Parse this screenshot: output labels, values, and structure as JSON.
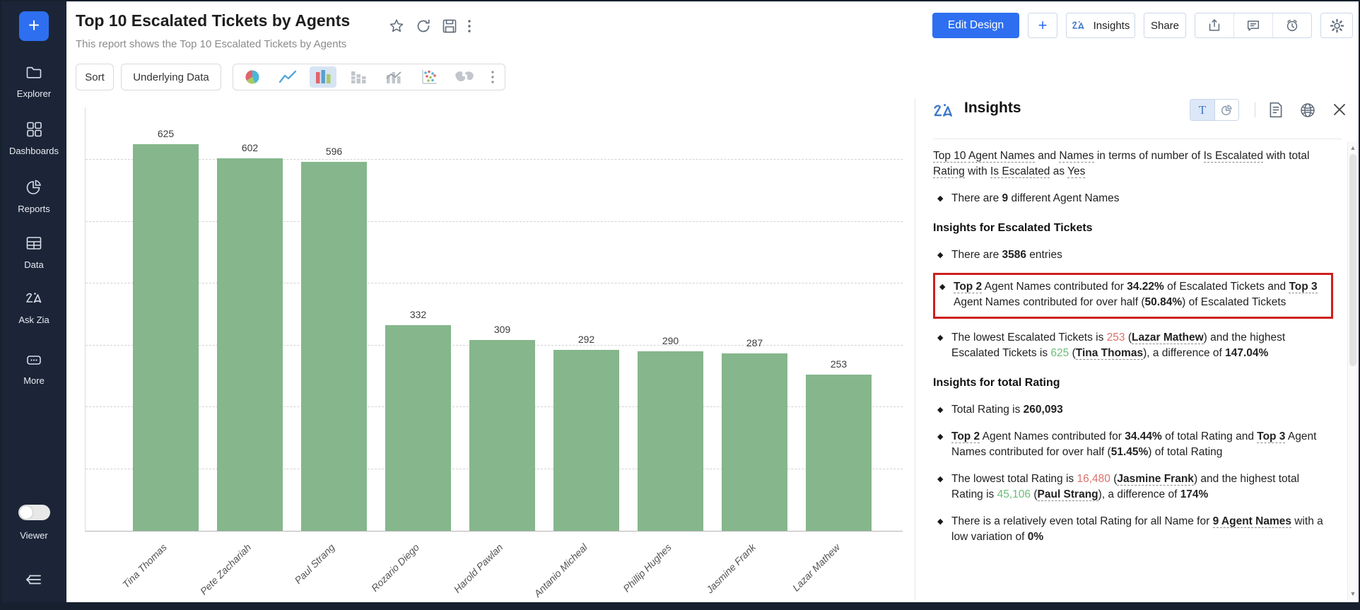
{
  "sidebar": {
    "plus": "+",
    "items": [
      "Explorer",
      "Dashboards",
      "Reports",
      "Data",
      "Ask Zia",
      "More"
    ],
    "viewer_label": "Viewer"
  },
  "header": {
    "title": "Top 10 Escalated Tickets by Agents",
    "subtitle": "This report shows the Top 10 Escalated Tickets by Agents",
    "edit_design": "Edit Design",
    "plus": "+",
    "insights_button": "Insights",
    "share": "Share"
  },
  "toolbar": {
    "sort": "Sort",
    "underlying_data": "Underlying Data"
  },
  "chart_data": {
    "type": "bar",
    "title": "Top 10 Escalated Tickets by Agents",
    "categories": [
      "Tina Thomas",
      "Pete Zachariah",
      "Paul Strang",
      "Rozario Diego",
      "Harold Pawlan",
      "Antanio Micheal",
      "Phillip Hughes",
      "Jasmine Frank",
      "Lazar Mathew"
    ],
    "values": [
      625,
      602,
      596,
      332,
      309,
      292,
      290,
      287,
      253
    ],
    "xlabel": "",
    "ylabel": "",
    "ylim": [
      0,
      685
    ],
    "grid": "horizontal dashed, step 100, no y tick labels",
    "bar_color": "#85b68c",
    "value_labels_shown": true,
    "legend": "none"
  },
  "insights": {
    "title": "Insights",
    "sections": [
      {
        "type": "intro",
        "segments": [
          {
            "t": "Top 10",
            "s": "u"
          },
          {
            "t": " ",
            "s": "n"
          },
          {
            "t": "Agent Names",
            "s": "u"
          },
          {
            "t": " and ",
            "s": "n"
          },
          {
            "t": "Names",
            "s": "u"
          },
          {
            "t": " in terms of number of ",
            "s": "n"
          },
          {
            "t": "Is Escalated",
            "s": "u"
          },
          {
            "t": " with total ",
            "s": "n"
          },
          {
            "t": "Rating",
            "s": "u"
          },
          {
            "t": " with ",
            "s": "n"
          },
          {
            "t": "Is Escalated",
            "s": "u"
          },
          {
            "t": " as ",
            "s": "n"
          },
          {
            "t": "Yes",
            "s": "u"
          }
        ]
      },
      {
        "type": "bullet",
        "segments": [
          {
            "t": "There are ",
            "s": "n"
          },
          {
            "t": "9",
            "s": "b"
          },
          {
            "t": " different Agent Names",
            "s": "n"
          }
        ]
      },
      {
        "type": "heading",
        "text": "Insights for Escalated Tickets"
      },
      {
        "type": "bullet",
        "segments": [
          {
            "t": "There are ",
            "s": "n"
          },
          {
            "t": "3586",
            "s": "b"
          },
          {
            "t": " entries",
            "s": "n"
          }
        ]
      },
      {
        "type": "bullet",
        "highlighted": true,
        "segments": [
          {
            "t": "Top 2",
            "s": "bu"
          },
          {
            "t": " Agent Names contributed for ",
            "s": "n"
          },
          {
            "t": "34.22%",
            "s": "b"
          },
          {
            "t": " of Escalated Tickets and ",
            "s": "n"
          },
          {
            "t": "Top 3",
            "s": "bu"
          },
          {
            "t": " Agent Names contributed for over half (",
            "s": "n"
          },
          {
            "t": "50.84%",
            "s": "b"
          },
          {
            "t": ") of Escalated Tickets",
            "s": "n"
          }
        ]
      },
      {
        "type": "bullet",
        "segments": [
          {
            "t": "The lowest Escalated Tickets is ",
            "s": "n"
          },
          {
            "t": "253",
            "s": "red"
          },
          {
            "t": " (",
            "s": "n"
          },
          {
            "t": "Lazar Mathew",
            "s": "bu"
          },
          {
            "t": ") and the highest Escalated Tickets is ",
            "s": "n"
          },
          {
            "t": "625",
            "s": "green"
          },
          {
            "t": " (",
            "s": "n"
          },
          {
            "t": "Tina Thomas",
            "s": "bu"
          },
          {
            "t": "), a difference of ",
            "s": "n"
          },
          {
            "t": "147.04%",
            "s": "b"
          }
        ]
      },
      {
        "type": "heading",
        "text": "Insights for total Rating"
      },
      {
        "type": "bullet",
        "segments": [
          {
            "t": "Total Rating is ",
            "s": "n"
          },
          {
            "t": "260,093",
            "s": "b"
          }
        ]
      },
      {
        "type": "bullet",
        "segments": [
          {
            "t": "Top 2",
            "s": "bu"
          },
          {
            "t": " Agent Names contributed for ",
            "s": "n"
          },
          {
            "t": "34.44%",
            "s": "b"
          },
          {
            "t": " of total Rating and ",
            "s": "n"
          },
          {
            "t": "Top 3",
            "s": "bu"
          },
          {
            "t": " Agent Names contributed for over half (",
            "s": "n"
          },
          {
            "t": "51.45%",
            "s": "b"
          },
          {
            "t": ") of total Rating",
            "s": "n"
          }
        ]
      },
      {
        "type": "bullet",
        "segments": [
          {
            "t": "The lowest total Rating is ",
            "s": "n"
          },
          {
            "t": "16,480",
            "s": "red"
          },
          {
            "t": " (",
            "s": "n"
          },
          {
            "t": "Jasmine Frank",
            "s": "bu"
          },
          {
            "t": ") and the highest total Rating is ",
            "s": "n"
          },
          {
            "t": "45,106",
            "s": "green"
          },
          {
            "t": " (",
            "s": "n"
          },
          {
            "t": "Paul Strang",
            "s": "bu"
          },
          {
            "t": "), a difference of ",
            "s": "n"
          },
          {
            "t": "174%",
            "s": "b"
          }
        ]
      },
      {
        "type": "bullet",
        "segments": [
          {
            "t": "There is a relatively even total Rating for all Name for ",
            "s": "n"
          },
          {
            "t": "9 Agent Names",
            "s": "bu"
          },
          {
            "t": " with a low variation of ",
            "s": "n"
          },
          {
            "t": "0%",
            "s": "b"
          }
        ]
      }
    ]
  },
  "colors": {
    "accent_blue": "#2d6ff0",
    "bar_green": "#85b68c",
    "low_value_red": "#e0706b",
    "high_value_green": "#6abf77",
    "highlight_border_red": "#cf1f1f",
    "sidebar_bg": "#1b2537"
  }
}
